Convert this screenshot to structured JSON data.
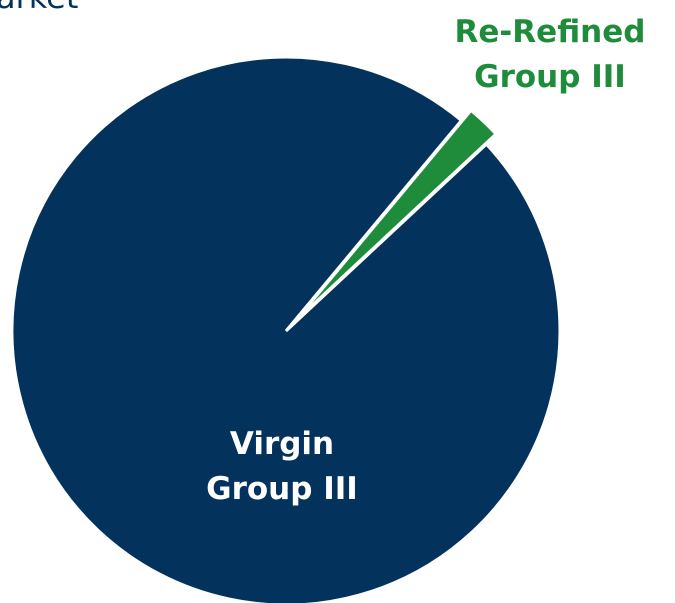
{
  "chart_data": {
    "type": "pie",
    "title": "arket",
    "categories": [
      "Virgin Group III",
      "Re-Refined Group III"
    ],
    "values": [
      98,
      2
    ],
    "colors": [
      "#03325c",
      "#1e8c3a"
    ],
    "label_colors": [
      "#ffffff",
      "#1e8c3a"
    ]
  }
}
